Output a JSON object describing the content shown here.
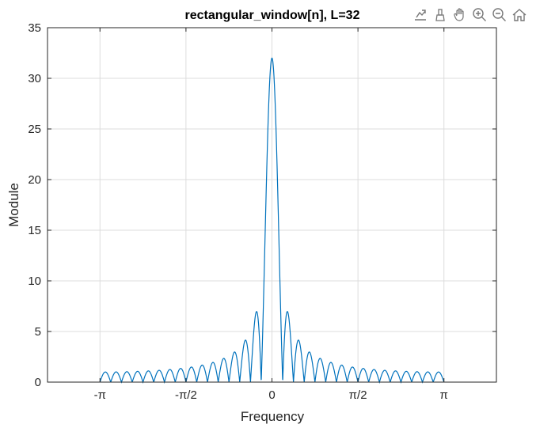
{
  "chart_data": {
    "type": "line",
    "title": "rectangular_window[n],  L=32",
    "xlabel": "Frequency",
    "ylabel": "Module",
    "xlim": [
      -4.1,
      4.1
    ],
    "ylim": [
      0,
      35
    ],
    "grid": true,
    "x_ticks": [
      {
        "value": -3.14159,
        "label": "-π"
      },
      {
        "value": -1.5708,
        "label": "-π/2"
      },
      {
        "value": 0,
        "label": "0"
      },
      {
        "value": 1.5708,
        "label": "π/2"
      },
      {
        "value": 3.14159,
        "label": "π"
      }
    ],
    "y_ticks": [
      {
        "value": 0,
        "label": "0"
      },
      {
        "value": 5,
        "label": "5"
      },
      {
        "value": 10,
        "label": "10"
      },
      {
        "value": 15,
        "label": "15"
      },
      {
        "value": 20,
        "label": "20"
      },
      {
        "value": 25,
        "label": "25"
      },
      {
        "value": 30,
        "label": "30"
      },
      {
        "value": 35,
        "label": "35"
      }
    ],
    "series": [
      {
        "function": "|sin(L*w/2)/sin(w/2)|",
        "L": 32,
        "x_range": [
          -3.14159,
          3.14159
        ],
        "samples": 2000,
        "color": "#0072bd"
      }
    ]
  },
  "toolbar": {
    "icons": [
      "export-icon",
      "brush-icon",
      "pan-icon",
      "zoom-in-icon",
      "zoom-out-icon",
      "home-icon"
    ]
  }
}
